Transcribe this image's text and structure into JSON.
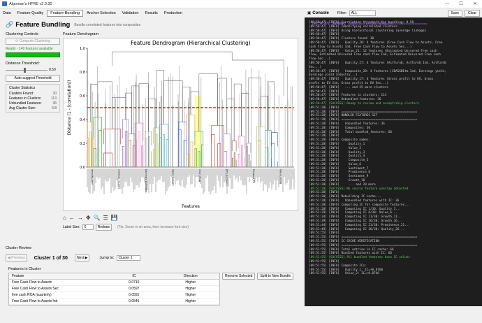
{
  "window": {
    "title": "Algoman's HFRE v2.0.30",
    "controls": [
      "—",
      "☐",
      "✕"
    ]
  },
  "menu": {
    "items": [
      "Data",
      "Feature Quality",
      "Feature Bundling",
      "Anchor Selection",
      "Validation",
      "Results",
      "Production"
    ],
    "active_index": 2
  },
  "page": {
    "title": "Feature Bundling",
    "subtitle": "Bundle correlated features into composites"
  },
  "clustering": {
    "section_label": "Clustering Controls",
    "compute_button": "Compute Clustering",
    "status": "Ready - 149 features available",
    "progress": 1.0,
    "threshold_label": "Distance Threshold:",
    "threshold_value": "0.50",
    "auto_button": "Auto-suggest Threshold"
  },
  "stats": {
    "label": "Cluster Statistics",
    "rows": [
      {
        "k": "Clusters Found:",
        "v": "30"
      },
      {
        "k": "Features in Clusters:",
        "v": "113"
      },
      {
        "k": "Unbundled Features:",
        "v": "36"
      },
      {
        "k": "Avg Cluster Size:",
        "v": "3.8"
      }
    ]
  },
  "dendrogram": {
    "panel_label": "Feature Dendrogram",
    "label_size_label": "Label Size:",
    "label_size_value": "6",
    "redraw_button": "Redraw",
    "hint": "(Tip: Zoom in on area, then increase font size)"
  },
  "chart_data": {
    "type": "dendrogram",
    "title": "Feature Dendrogram (Hierarchical Clustering)",
    "xlabel": "Features",
    "ylabel": "Distance (1 - |correlation|)",
    "ylim": [
      0,
      1.0
    ],
    "yticks": [
      "0.0",
      "0.2",
      "0.4",
      "0.6",
      "0.8",
      "1.0"
    ],
    "threshold": 0.5,
    "threshold_color": "#cc0000",
    "n_leaves": 149,
    "cluster_colors": [
      "#f0a030",
      "#30a030",
      "#cc3030",
      "#9060c0",
      "#8b5a2b",
      "#e070c0",
      "#909090",
      "#c0c030",
      "#30b0c0",
      "#3060d0"
    ],
    "clusters": [
      {
        "start": 0.0,
        "end": 0.03,
        "height": 0.38,
        "color": "#f0a030"
      },
      {
        "start": 0.03,
        "end": 0.07,
        "height": 0.42,
        "color": "#30a030"
      },
      {
        "start": 0.08,
        "end": 0.16,
        "height": 0.32,
        "color": "#cc3030"
      },
      {
        "start": 0.17,
        "end": 0.2,
        "height": 0.4,
        "color": "#9060c0"
      },
      {
        "start": 0.2,
        "end": 0.23,
        "height": 0.28,
        "color": "#8b5a2b"
      },
      {
        "start": 0.23,
        "end": 0.27,
        "height": 0.37,
        "color": "#e070c0"
      },
      {
        "start": 0.28,
        "end": 0.31,
        "height": 0.3,
        "color": "#909090"
      },
      {
        "start": 0.32,
        "end": 0.35,
        "height": 0.33,
        "color": "#c0c030"
      },
      {
        "start": 0.35,
        "end": 0.39,
        "height": 0.36,
        "color": "#30b0c0"
      },
      {
        "start": 0.44,
        "end": 0.48,
        "height": 0.38,
        "color": "#3060d0"
      },
      {
        "start": 0.48,
        "end": 0.52,
        "height": 0.44,
        "color": "#f0a030"
      },
      {
        "start": 0.52,
        "end": 0.56,
        "height": 0.3,
        "color": "#30a030"
      },
      {
        "start": 0.6,
        "end": 0.66,
        "height": 0.35,
        "color": "#cc3030"
      },
      {
        "start": 0.66,
        "end": 0.69,
        "height": 0.28,
        "color": "#9060c0"
      },
      {
        "start": 0.7,
        "end": 0.72,
        "height": 0.22,
        "color": "#8b5a2b"
      },
      {
        "start": 0.73,
        "end": 0.76,
        "height": 0.26,
        "color": "#e070c0"
      },
      {
        "start": 0.77,
        "end": 0.79,
        "height": 0.2,
        "color": "#909090"
      },
      {
        "start": 0.82,
        "end": 0.86,
        "height": 0.34,
        "color": "#c0c030"
      },
      {
        "start": 0.86,
        "end": 0.89,
        "height": 0.31,
        "color": "#30b0c0"
      },
      {
        "start": 0.89,
        "end": 0.92,
        "height": 0.29,
        "color": "#3060d0"
      }
    ],
    "visible_leaf_labels": [
      "amplify_tech",
      "residual_income",
      "Earnings_Estimate",
      "Sales_Growth",
      "Cash_Flow",
      "EPS_Estimate",
      "Forward_PE",
      "Value_Score"
    ],
    "highlight": {
      "start": 0.52,
      "end": 0.55,
      "color": "#ffff80"
    }
  },
  "toolbar": {
    "icons": [
      "home-icon",
      "back-arrow-icon",
      "forward-arrow-icon",
      "pan-icon",
      "zoom-icon",
      "configure-icon",
      "save-icon"
    ],
    "glyphs": [
      "⌂",
      "←",
      "→",
      "✥",
      "🔍",
      "☰",
      "💾"
    ]
  },
  "review": {
    "label": "Cluster Review",
    "prev_button": "◀ Previous",
    "counter": "Cluster 1 of 30",
    "next_button": "Next ▶",
    "jump_label": "Jump to:",
    "jump_value": "Cluster 1",
    "features_label": "Features in Cluster",
    "columns": [
      "Feature",
      "IC",
      "Direction"
    ],
    "rows": [
      [
        "Free Cash Flow to Assets",
        "0.0710",
        "Higher"
      ],
      [
        "Free Cash Flow to Assets Sec",
        "0.0597",
        "Higher"
      ],
      [
        "free cash ROA (quarterly)",
        "0.0591",
        "Higher"
      ],
      [
        "Free Cash Flow to Assets Ind",
        "0.0546",
        "Higher"
      ]
    ],
    "remove_button": "Remove Selected",
    "split_button": "Split to New Bundle"
  },
  "console": {
    "title": "Console",
    "filter_label": "Filter:",
    "filter_value": "ALL",
    "save_button": "Save",
    "clear_button": "Clear",
    "lines": [
      {
        "t": "[09:50:47] [HEADER] ============================================",
        "c": "hdr"
      },
      {
        "t": "[09:50:47] [HEADER]  STEP 5: FEATURE BUNDLING",
        "c": "hdr"
      },
      {
        "t": "[09:50:47] [HEADER] ============================================",
        "c": "hdr"
      },
      {
        "t": "[09:50:47] [INFO] Correlation threshold for bundling: 0.50",
        "c": ""
      },
      {
        "t": "[09:50:47] [INFO] Identifying correlated clusters...",
        "c": ""
      },
      {
        "t": "[09:50:47] [INFO] Using hierarchical clustering (average linkage)",
        "c": ""
      },
      {
        "t": "[09:50:47] [INFO]",
        "c": ""
      },
      {
        "t": "[09:50:47] [INFO] Clusters found: 30",
        "c": ""
      },
      {
        "t": "[09:50:47] [INFO]   Quality_28: 4 features (Free Cash Flow to Assets, Free",
        "c": ""
      },
      {
        "t": "Cash Flow to Assets Ind, Free Cash Flow to Assets Sec...)",
        "c": ""
      },
      {
        "t": "[09:50:47] [INFO]   Value_21: 12 features (Estimated Univered Free cash",
        "c": ""
      },
      {
        "t": "flow, Estimated Univered Free cash flow Ind, Estimated Univered Free cash",
        "c": ""
      },
      {
        "t": "flow Sec...)",
        "c": ""
      },
      {
        "t": "[09:50:47] [INFO]   Quality_27: 4 features (AstTurnQ, AstTurnQ Ind, AstTurnQ",
        "c": ""
      },
      {
        "t": "Sec...)",
        "c": ""
      },
      {
        "t": "[09:50:47] [INFO]   Composite_28: 4 features (CDASGNItm Ind, Earnings yield,",
        "c": ""
      },
      {
        "t": "Earnings yield Industry...)",
        "c": ""
      },
      {
        "t": "[09:50:47] [INFO]   Quality_17: 4 features (Gross profit to EV, Gross",
        "c": ""
      },
      {
        "t": "profit to EV Ind, Gross profit to EV Sec...)",
        "c": ""
      },
      {
        "t": "[09:50:47] [INFO]   ... and 25 more clusters",
        "c": ""
      },
      {
        "t": "[09:50:47] [INFO]",
        "c": ""
      },
      {
        "t": "[09:50:47] [INFO] Features in clusters: 113",
        "c": ""
      },
      {
        "t": "[09:50:47] [INFO] Unbundled features: 36",
        "c": ""
      },
      {
        "t": "[09:50:47] [SUCCESS] Ready to review and accept/skip clusters",
        "c": "ok"
      },
      {
        "t": "[09:51:20] [INFO]",
        "c": ""
      },
      {
        "t": "[09:51:20] [INFO] ==========================================",
        "c": ""
      },
      {
        "t": "[09:51:20] [INFO] BUNDLED FEATURES SET",
        "c": ""
      },
      {
        "t": "[09:51:20] [INFO] ==========================================",
        "c": ""
      },
      {
        "t": "[09:51:20] [INFO]   Unbundled features: 36",
        "c": ""
      },
      {
        "t": "[09:51:20] [INFO]   Composites: 30",
        "c": ""
      },
      {
        "t": "[09:51:20] [INFO]   Total bundled_features: 66",
        "c": ""
      },
      {
        "t": "[09:51:20] [INFO]",
        "c": ""
      },
      {
        "t": "[09:51:20] [INFO] Composite names:",
        "c": ""
      },
      {
        "t": "[09:51:20] [INFO]     Quality_1",
        "c": ""
      },
      {
        "t": "[09:51:20] [INFO]     Value_2",
        "c": ""
      },
      {
        "t": "[09:51:20] [INFO]     Quality_3",
        "c": ""
      },
      {
        "t": "[09:51:20] [INFO]     Quality_4",
        "c": ""
      },
      {
        "t": "[09:51:20] [INFO]     Composite_5",
        "c": ""
      },
      {
        "t": "[09:51:20] [INFO]     Value_6",
        "c": ""
      },
      {
        "t": "[09:51:20] [INFO]     Sentiment_7",
        "c": ""
      },
      {
        "t": "[09:51:20] [INFO]     Prominence_8",
        "c": ""
      },
      {
        "t": "[09:51:20] [INFO]     Sentiment_9",
        "c": ""
      },
      {
        "t": "[09:51:20] [INFO]     Growth_10",
        "c": ""
      },
      {
        "t": "[09:51:20] [INFO]     ... and 20 more",
        "c": ""
      },
      {
        "t": "[09:51:20] [SUCCESS] No source feature overlap detected",
        "c": "ok"
      },
      {
        "t": "[09:51:20] [INFO]",
        "c": ""
      },
      {
        "t": "[09:51:20] [INFO] Rebuilding IC cache...",
        "c": ""
      },
      {
        "t": "[09:51:20] [INFO]   Unbundled features with IC: 36",
        "c": ""
      },
      {
        "t": "[09:51:20] [INFO] Computing IC for composite features...",
        "c": ""
      },
      {
        "t": "[09:51:20] [INFO]   Computing IC 1/30: Quality_1...",
        "c": ""
      },
      {
        "t": "[09:51:29] [INFO]   Computing IC 6/30: Value_6...",
        "c": ""
      },
      {
        "t": "[09:51:34] [INFO]   Computing IC 11/30: Growth_11...",
        "c": ""
      },
      {
        "t": "[09:51:39] [INFO]   Computing IC 16/30: Growth_16...",
        "c": ""
      },
      {
        "t": "[09:51:44] [INFO]   Computing IC 21/30: Prominence_21...",
        "c": ""
      },
      {
        "t": "[09:51:49] [INFO]   Computing IC 26/30: Quality_26...",
        "c": ""
      },
      {
        "t": "[09:51:55] [INFO]",
        "c": ""
      },
      {
        "t": "[09:51:55] [INFO] ==========================================",
        "c": ""
      },
      {
        "t": "[09:51:55] [INFO] IC CACHE VERIFICATION",
        "c": ""
      },
      {
        "t": "[09:51:55] [INFO] ==========================================",
        "c": ""
      },
      {
        "t": "[09:51:55] [INFO] Total entries in IC cache: 66",
        "c": ""
      },
      {
        "t": "[09:51:55] [INFO] Bundled features with IC: 66",
        "c": ""
      },
      {
        "t": "[09:51:55] [SUCCESS] All bundled features have IC values",
        "c": "ok"
      },
      {
        "t": "[09:51:55] [INFO]",
        "c": ""
      },
      {
        "t": "[09:51:55] [INFO] Composite ICs:",
        "c": ""
      },
      {
        "t": "[09:51:55] [INFO]   Quality_1: IC=+0.0760",
        "c": ""
      },
      {
        "t": "[09:51:55] [INFO]   Value_2: IC=+0.0746",
        "c": ""
      }
    ]
  }
}
